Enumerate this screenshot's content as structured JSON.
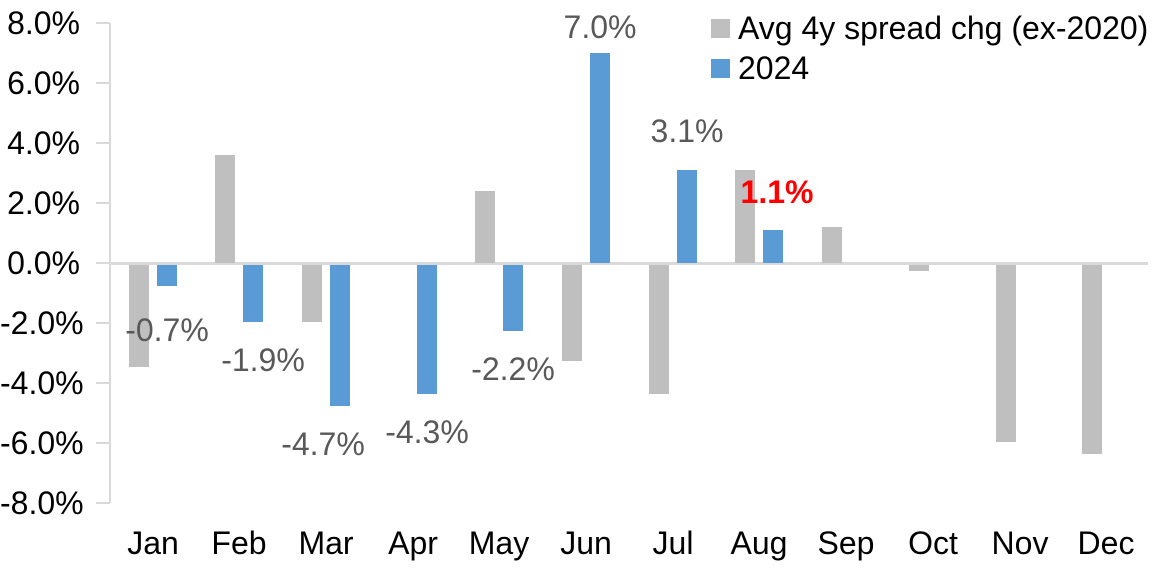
{
  "chart_data": {
    "type": "bar",
    "categories": [
      "Jan",
      "Feb",
      "Mar",
      "Apr",
      "May",
      "Jun",
      "Jul",
      "Aug",
      "Sep",
      "Oct",
      "Nov",
      "Dec"
    ],
    "series": [
      {
        "name": "Avg 4y spread chg (ex-2020)",
        "color": "#BFBFBF",
        "values": [
          -3.4,
          3.6,
          -1.9,
          0.0,
          2.4,
          -3.2,
          -4.3,
          3.1,
          1.2,
          -0.2,
          -5.9,
          -6.3
        ]
      },
      {
        "name": "2024",
        "color": "#5B9BD5",
        "values": [
          -0.7,
          -1.9,
          -4.7,
          -4.3,
          -2.2,
          7.0,
          3.1,
          1.1,
          null,
          null,
          null,
          null
        ]
      }
    ],
    "data_labels": {
      "series": "2024",
      "entries": [
        {
          "category": "Jan",
          "text": "-0.7%",
          "color": "#595959",
          "bold": false
        },
        {
          "category": "Feb",
          "text": "-1.9%",
          "color": "#595959",
          "bold": false
        },
        {
          "category": "Mar",
          "text": "-4.7%",
          "color": "#595959",
          "bold": false
        },
        {
          "category": "Apr",
          "text": "-4.3%",
          "color": "#595959",
          "bold": false
        },
        {
          "category": "May",
          "text": "-2.2%",
          "color": "#595959",
          "bold": false
        },
        {
          "category": "Jun",
          "text": "7.0%",
          "color": "#595959",
          "bold": false
        },
        {
          "category": "Jul",
          "text": "3.1%",
          "color": "#595959",
          "bold": false
        },
        {
          "category": "Aug",
          "text": "1.1%",
          "color": "#FF0000",
          "bold": true
        }
      ]
    },
    "y_axis": {
      "min": -8,
      "max": 8,
      "step": 2,
      "ticks": [
        "8.0%",
        "6.0%",
        "4.0%",
        "2.0%",
        "0.0%",
        "-2.0%",
        "-4.0%",
        "-6.0%",
        "-8.0%"
      ]
    },
    "xlabel": "",
    "ylabel": "",
    "grid": "zero-line-only",
    "legend_position": "top-right",
    "colors": {
      "axis_line": "#D9D9D9",
      "tick_text": "#000000",
      "data_label_default": "#595959",
      "data_label_highlight": "#FF0000"
    }
  }
}
